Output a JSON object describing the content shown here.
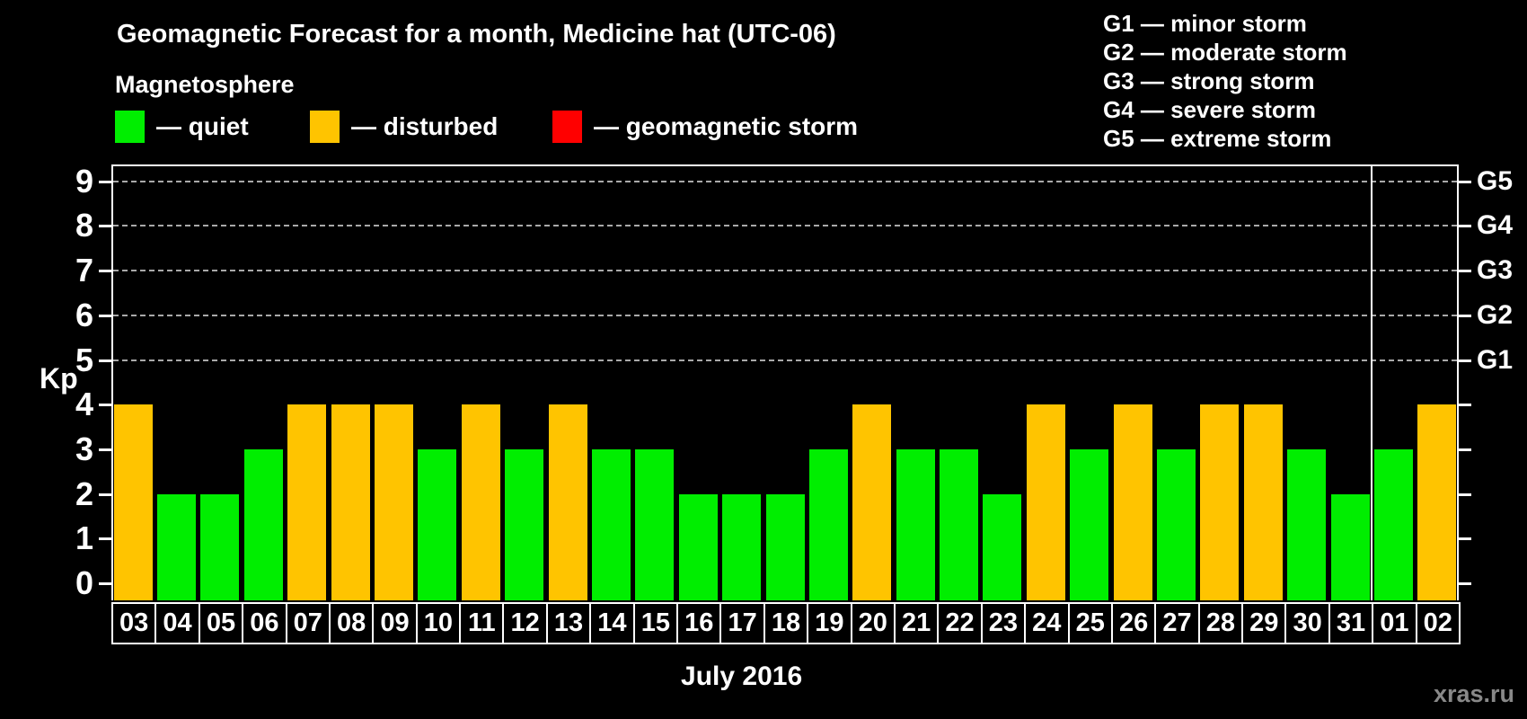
{
  "title": "Geomagnetic Forecast for a month, Medicine hat (UTC-06)",
  "subtitle": "Magnetosphere",
  "legend": {
    "items": [
      {
        "key": "quiet",
        "label": "— quiet",
        "color": "#00EE00"
      },
      {
        "key": "disturbed",
        "label": "— disturbed",
        "color": "#FFC400"
      },
      {
        "key": "storm",
        "label": "— geomagnetic storm",
        "color": "#FF0000"
      }
    ]
  },
  "storm_scale_legend": [
    "G1 — minor storm",
    "G2 — moderate storm",
    "G3 — strong storm",
    "G4 — severe storm",
    "G5 — extreme storm"
  ],
  "watermark": "xras.ru",
  "chart_data": {
    "type": "bar",
    "title": "Geomagnetic Forecast for a month, Medicine hat (UTC-06)",
    "xlabel": "July 2016",
    "ylabel": "Kp",
    "ylim": [
      0,
      9
    ],
    "yticks": [
      0,
      1,
      2,
      3,
      4,
      5,
      6,
      7,
      8,
      9
    ],
    "gridlines_at": [
      5,
      6,
      7,
      8,
      9
    ],
    "grid_style": "dashed horizontal",
    "legend_position": "top",
    "right_axis_labels": [
      {
        "label": "G1",
        "value": 5
      },
      {
        "label": "G2",
        "value": 6
      },
      {
        "label": "G3",
        "value": 7
      },
      {
        "label": "G4",
        "value": 8
      },
      {
        "label": "G5",
        "value": 9
      }
    ],
    "categories": [
      "03",
      "04",
      "05",
      "06",
      "07",
      "08",
      "09",
      "10",
      "11",
      "12",
      "13",
      "14",
      "15",
      "16",
      "17",
      "18",
      "19",
      "20",
      "21",
      "22",
      "23",
      "24",
      "25",
      "26",
      "27",
      "28",
      "29",
      "30",
      "31",
      "01",
      "02"
    ],
    "values": [
      4,
      2,
      2,
      3,
      4,
      4,
      4,
      3,
      4,
      3,
      4,
      3,
      3,
      2,
      2,
      2,
      3,
      4,
      3,
      3,
      2,
      4,
      3,
      4,
      3,
      4,
      4,
      3,
      2,
      3,
      4
    ],
    "statuses": [
      "disturbed",
      "quiet",
      "quiet",
      "quiet",
      "disturbed",
      "disturbed",
      "disturbed",
      "quiet",
      "disturbed",
      "quiet",
      "disturbed",
      "quiet",
      "quiet",
      "quiet",
      "quiet",
      "quiet",
      "quiet",
      "disturbed",
      "quiet",
      "quiet",
      "quiet",
      "disturbed",
      "quiet",
      "disturbed",
      "quiet",
      "disturbed",
      "disturbed",
      "quiet",
      "quiet",
      "quiet",
      "disturbed"
    ],
    "colors": {
      "quiet": "#00EE00",
      "disturbed": "#FFC400",
      "storm": "#FF0000"
    },
    "month_separator_index": 29
  }
}
